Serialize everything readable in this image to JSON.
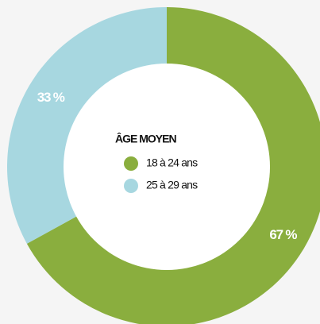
{
  "chart_data": {
    "type": "donut",
    "legend_title": "ÂGE MOYEN",
    "categories": [
      "18 à 24 ans",
      "25 à 29 ans"
    ],
    "values": [
      67,
      33
    ],
    "value_labels": [
      "67 %",
      "33 %"
    ],
    "colors": [
      "#8aae3e",
      "#a7d7e0"
    ]
  }
}
